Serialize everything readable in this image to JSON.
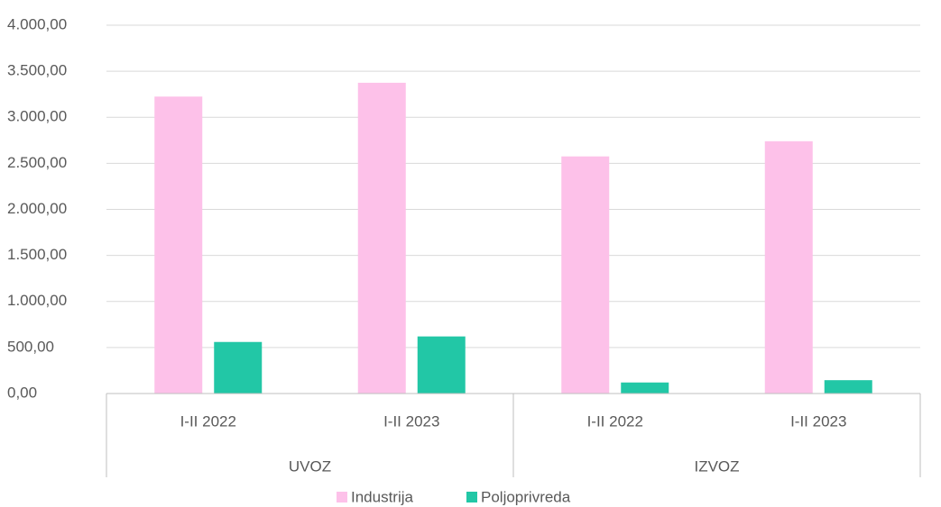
{
  "chart_data": {
    "type": "bar",
    "groups": [
      {
        "name": "UVOZ",
        "categories": [
          "I-II  2022",
          "I-II  2023"
        ]
      },
      {
        "name": "IZVOZ",
        "categories": [
          "I-II  2022",
          "I-II  2023"
        ]
      }
    ],
    "series": [
      {
        "name": "Industrija",
        "color": "#fdc1e9",
        "values": [
          3225,
          3375,
          2575,
          2740
        ]
      },
      {
        "name": "Poljoprivreda",
        "color": "#22c7a6",
        "values": [
          560,
          620,
          120,
          145
        ]
      }
    ],
    "ylim": [
      0,
      4000
    ],
    "yticks": [
      {
        "value": 0,
        "label": "0,00"
      },
      {
        "value": 500,
        "label": "500,00"
      },
      {
        "value": 1000,
        "label": "1.000,00"
      },
      {
        "value": 1500,
        "label": "1.500,00"
      },
      {
        "value": 2000,
        "label": "2.000,00"
      },
      {
        "value": 2500,
        "label": "2.500,00"
      },
      {
        "value": 3000,
        "label": "3.000,00"
      },
      {
        "value": 3500,
        "label": "3.500,00"
      },
      {
        "value": 4000,
        "label": "4.000,00"
      }
    ],
    "grid": true,
    "legend": "bottom"
  }
}
